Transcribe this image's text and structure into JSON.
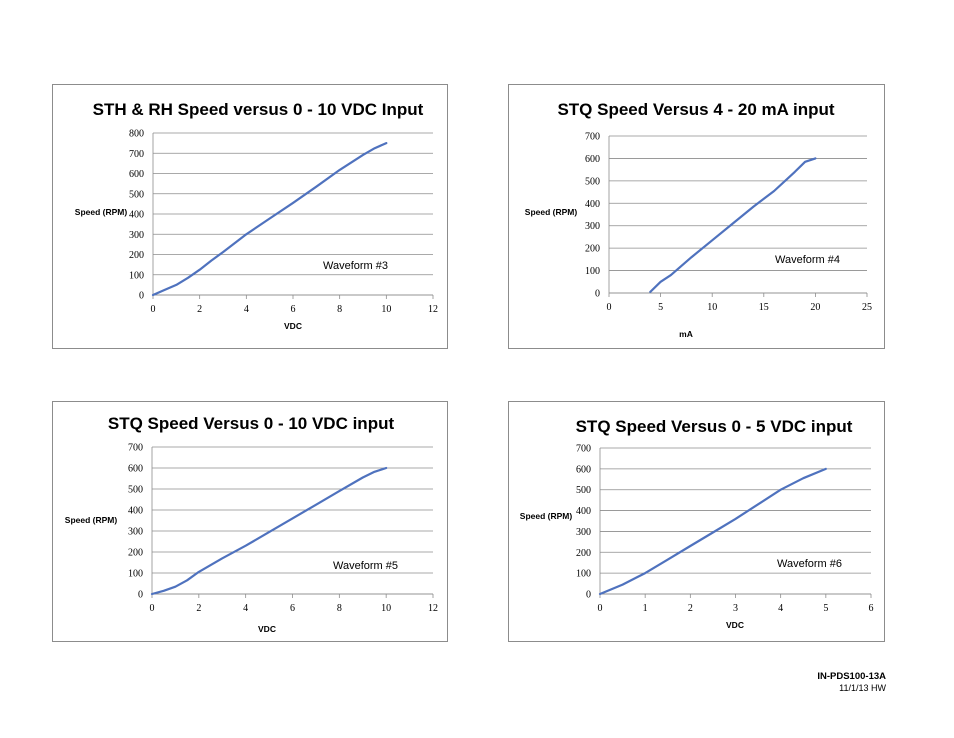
{
  "colors": {
    "line": "#4f72be",
    "grid": "#8c8c8c",
    "axis": "#8c8c8c",
    "text": "#000000"
  },
  "chart_data": [
    {
      "type": "line",
      "title": "STH & RH Speed versus 0 - 10 VDC Input",
      "xlabel": "VDC",
      "ylabel": "Speed (RPM)",
      "annotation": "Waveform  #3",
      "xlim": [
        0,
        12
      ],
      "ylim": [
        0,
        800
      ],
      "xticks": [
        0,
        2,
        4,
        6,
        8,
        10,
        12
      ],
      "yticks": [
        0,
        100,
        200,
        300,
        400,
        500,
        600,
        700,
        800
      ],
      "grid": true,
      "series": [
        {
          "x": [
            0,
            0.5,
            1,
            1.5,
            2,
            2.5,
            3,
            4,
            5,
            6,
            7,
            8,
            9,
            9.5,
            10
          ],
          "y": [
            0,
            25,
            50,
            85,
            125,
            170,
            212,
            300,
            378,
            455,
            535,
            618,
            692,
            725,
            750
          ]
        }
      ]
    },
    {
      "type": "line",
      "title": "STQ Speed Versus 4 - 20 mA input",
      "xlabel": "mA",
      "ylabel": "Speed (RPM)",
      "annotation": "Waveform  #4",
      "xlim": [
        0,
        25
      ],
      "ylim": [
        0,
        700
      ],
      "xticks": [
        0,
        5,
        10,
        15,
        20,
        25
      ],
      "yticks": [
        0,
        100,
        200,
        300,
        400,
        500,
        600,
        700
      ],
      "grid": true,
      "series": [
        {
          "x": [
            4,
            5,
            6,
            8,
            10,
            12,
            14,
            16,
            18,
            19,
            20
          ],
          "y": [
            5,
            50,
            80,
            160,
            235,
            310,
            385,
            455,
            540,
            585,
            600
          ]
        }
      ]
    },
    {
      "type": "line",
      "title": "STQ Speed Versus 0 - 10 VDC input",
      "xlabel": "VDC",
      "ylabel": "Speed (RPM)",
      "annotation": "Waveform  #5",
      "xlim": [
        0,
        12
      ],
      "ylim": [
        0,
        700
      ],
      "xticks": [
        0,
        2,
        4,
        6,
        8,
        10,
        12
      ],
      "yticks": [
        0,
        100,
        200,
        300,
        400,
        500,
        600,
        700
      ],
      "grid": true,
      "series": [
        {
          "x": [
            0,
            0.5,
            1,
            1.5,
            2,
            3,
            4,
            5,
            6,
            7,
            8,
            9,
            9.5,
            10
          ],
          "y": [
            0,
            15,
            35,
            65,
            105,
            170,
            230,
            295,
            360,
            425,
            490,
            555,
            582,
            600
          ]
        }
      ]
    },
    {
      "type": "line",
      "title": "STQ Speed Versus 0 - 5 VDC input",
      "xlabel": "VDC",
      "ylabel": "Speed (RPM)",
      "annotation": "Waveform  #6",
      "xlim": [
        0,
        6
      ],
      "ylim": [
        0,
        700
      ],
      "xticks": [
        0,
        1,
        2,
        3,
        4,
        5,
        6
      ],
      "yticks": [
        0,
        100,
        200,
        300,
        400,
        500,
        600,
        700
      ],
      "grid": true,
      "series": [
        {
          "x": [
            0,
            0.5,
            1,
            1.5,
            2,
            2.5,
            3,
            3.5,
            4,
            4.5,
            5
          ],
          "y": [
            0,
            45,
            100,
            165,
            230,
            295,
            360,
            430,
            500,
            555,
            600
          ]
        }
      ]
    }
  ],
  "footer": {
    "doc_id": "IN-PDS100-13A",
    "date": "11/1/13 HW"
  }
}
